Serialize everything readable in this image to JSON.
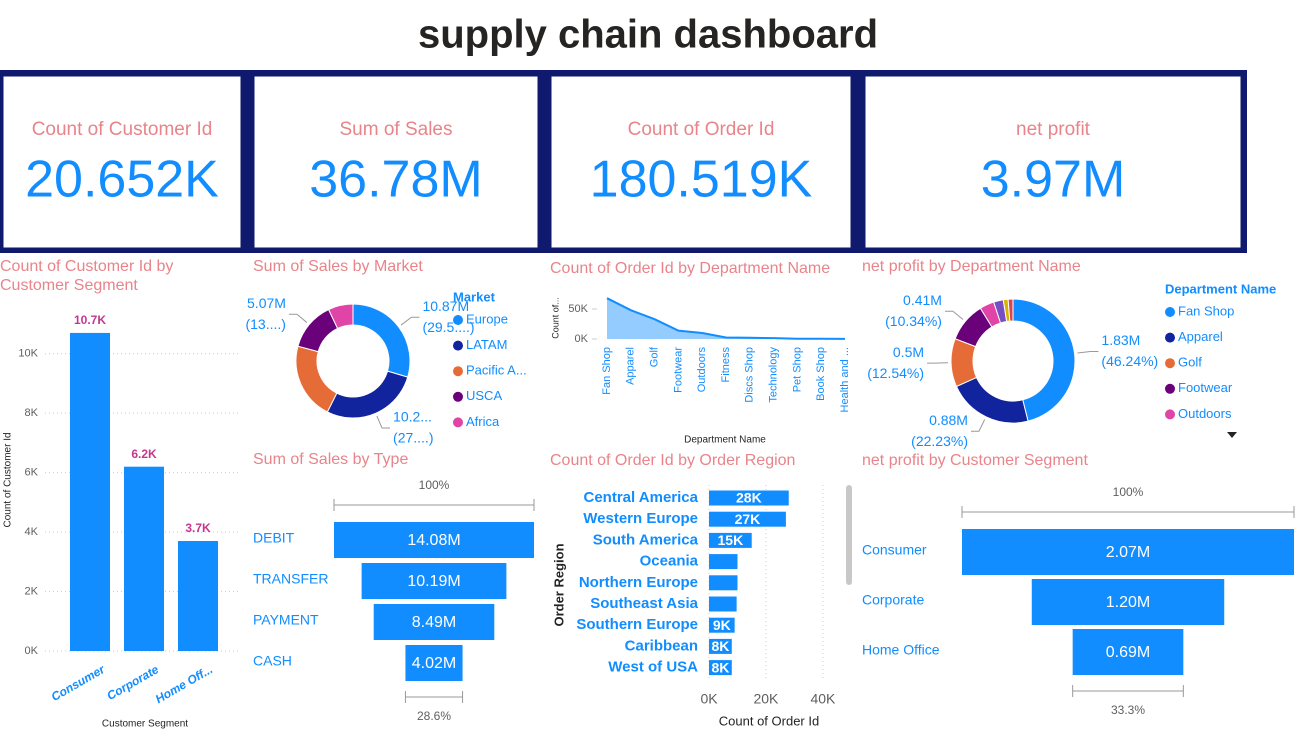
{
  "title": "supply chain dashboard",
  "kpis": [
    {
      "label": "Count of Customer Id",
      "value": "20.652K"
    },
    {
      "label": "Sum of Sales",
      "value": "36.78M"
    },
    {
      "label": "Count of Order Id",
      "value": "180.519K"
    },
    {
      "label": "net profit",
      "value": "3.97M"
    }
  ],
  "chart_data": [
    {
      "type": "bar",
      "title": "Count of Customer Id by Customer Segment",
      "categories": [
        "Consumer",
        "Corporate",
        "Home Off..."
      ],
      "values": [
        10700,
        6200,
        3700
      ],
      "value_labels": [
        "10.7K",
        "6.2K",
        "3.7K"
      ],
      "color": "#118dff",
      "ylim": [
        0,
        11000
      ],
      "yticks": [
        {
          "value": 0,
          "label": "0K"
        },
        {
          "value": 2000,
          "label": "2K"
        },
        {
          "value": 4000,
          "label": "4K"
        },
        {
          "value": 6000,
          "label": "6K"
        },
        {
          "value": 8000,
          "label": "8K"
        },
        {
          "value": 10000,
          "label": "10K"
        }
      ],
      "grid": true,
      "x_label": "Customer Segment",
      "y_label": "Count of Customer Id"
    },
    {
      "type": "donut",
      "title": "Sum of Sales by Market",
      "legend_title": "Market",
      "categories": [
        "Europe",
        "LATAM",
        "Pacific A...",
        "USCA",
        "Africa"
      ],
      "values": [
        10.87,
        10.25,
        8.0,
        5.07,
        2.59
      ],
      "value_labels": [
        "10.87M",
        "10.2...",
        null,
        "5.07M",
        null
      ],
      "percent_labels": [
        "(29.5....)",
        "(27....)",
        null,
        "(13....)",
        null
      ],
      "colors": [
        "#118dff",
        "#12239e",
        "#e66c37",
        "#6b007b",
        "#e044a7"
      ]
    },
    {
      "type": "area",
      "title": "Count of Order Id by Department Name",
      "categories": [
        "Fan Shop",
        "Apparel",
        "Golf",
        "Footwear",
        "Outdoors",
        "Fitness",
        "Discs Shop",
        "Technology",
        "Pet Shop",
        "Book Shop",
        "Health and ..."
      ],
      "values": [
        68000,
        48000,
        33000,
        14000,
        10000,
        2500,
        2000,
        1500,
        500,
        400,
        300
      ],
      "color": "#118dff",
      "ylim": [
        0,
        70000
      ],
      "yticks": [
        {
          "value": 0,
          "label": "0K"
        },
        {
          "value": 50000,
          "label": "50K"
        }
      ],
      "x_label": "Department Name",
      "y_label": "Count of..."
    },
    {
      "type": "donut",
      "title": "net profit by Department Name",
      "legend_title": "Department Name",
      "categories": [
        "Fan Shop",
        "Apparel",
        "Golf",
        "Footwear",
        "Outdoors",
        null,
        null,
        null
      ],
      "values": [
        1.83,
        0.88,
        0.5,
        0.41,
        0.15,
        0.1,
        0.05,
        0.05
      ],
      "value_labels": [
        "1.83M",
        "0.88M",
        "0.5M",
        "0.41M",
        null,
        null,
        null,
        null
      ],
      "percent_labels": [
        "(46.24%)",
        "(22.23%)",
        "(12.54%)",
        "(10.34%)",
        null,
        null,
        null,
        null
      ],
      "colors": [
        "#118dff",
        "#12239e",
        "#e66c37",
        "#6b007b",
        "#e044a7",
        "#744ec2",
        "#d9b300",
        "#d64550"
      ]
    },
    {
      "type": "funnel",
      "title": "Sum of Sales by Type",
      "categories": [
        "DEBIT",
        "TRANSFER",
        "PAYMENT",
        "CASH"
      ],
      "values": [
        14.08,
        10.19,
        8.49,
        4.02
      ],
      "value_labels": [
        "14.08M",
        "10.19M",
        "8.49M",
        "4.02M"
      ],
      "color": "#118dff",
      "top_label": "100%",
      "bottom_label": "28.6%"
    },
    {
      "type": "bar",
      "orientation": "horizontal",
      "title": "Count of Order Id by Order Region",
      "categories": [
        "Central America",
        "Western Europe",
        "South America",
        "Oceania",
        "Northern Europe",
        "Southeast Asia",
        "Southern Europe",
        "Caribbean",
        "West of USA"
      ],
      "values": [
        28000,
        27000,
        15000,
        10000,
        10000,
        9700,
        9000,
        8000,
        8000
      ],
      "value_labels": [
        "28K",
        "27K",
        "15K",
        null,
        null,
        null,
        "9K",
        "8K",
        "8K"
      ],
      "color": "#118dff",
      "xlim": [
        0,
        46000
      ],
      "xticks": [
        {
          "value": 0,
          "label": "0K"
        },
        {
          "value": 20000,
          "label": "20K"
        },
        {
          "value": 40000,
          "label": "40K"
        }
      ],
      "grid": true,
      "x_label": "Count of Order Id",
      "y_label": "Order Region"
    },
    {
      "type": "funnel",
      "title": "net profit by Customer Segment",
      "categories": [
        "Consumer",
        "Corporate",
        "Home Office"
      ],
      "values": [
        2.07,
        1.2,
        0.69
      ],
      "value_labels": [
        "2.07M",
        "1.20M",
        "0.69M"
      ],
      "color": "#118dff",
      "top_label": "100%",
      "bottom_label": "33.3%"
    }
  ]
}
